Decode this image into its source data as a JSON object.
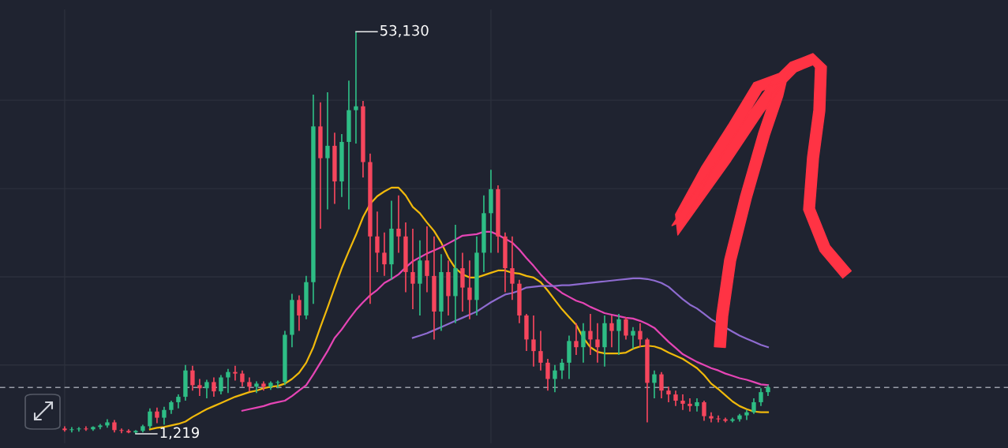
{
  "chart_data": {
    "type": "candlestick",
    "categories": [
      null,
      null,
      null,
      null,
      null,
      null,
      null,
      null,
      null,
      null,
      null,
      null,
      null,
      null,
      null,
      null,
      null,
      null,
      null,
      null,
      null,
      null,
      null,
      null,
      null,
      null,
      null,
      null,
      null,
      null,
      null,
      null,
      null,
      null,
      null,
      null,
      null,
      null,
      null,
      null,
      null,
      null,
      null,
      null,
      null,
      null,
      null,
      null,
      null,
      null,
      null,
      null,
      null,
      null,
      null,
      null,
      null,
      null,
      null,
      null,
      null,
      null,
      null,
      null,
      null,
      null,
      null,
      null,
      null,
      null,
      null,
      null,
      null,
      null,
      null,
      null,
      null,
      null,
      null,
      null,
      null,
      null,
      null,
      null,
      null,
      null,
      null,
      null,
      null,
      null,
      null,
      null,
      null,
      null,
      null,
      null,
      null,
      null,
      null,
      null
    ],
    "ohlc": [
      [
        1900,
        2200,
        1500,
        1700
      ],
      [
        1700,
        2100,
        1400,
        1800
      ],
      [
        1800,
        2100,
        1500,
        1900
      ],
      [
        1900,
        2200,
        1600,
        1800
      ],
      [
        1800,
        2200,
        1600,
        2100
      ],
      [
        2100,
        2500,
        1800,
        2300
      ],
      [
        2300,
        3100,
        2000,
        2700
      ],
      [
        2700,
        3000,
        1400,
        1700
      ],
      [
        1700,
        1900,
        1300,
        1600
      ],
      [
        1600,
        1800,
        1300,
        1400
      ],
      [
        1400,
        1700,
        1219,
        1600
      ],
      [
        1600,
        2400,
        1400,
        2200
      ],
      [
        2200,
        4500,
        1900,
        4100
      ],
      [
        4100,
        4600,
        2600,
        3300
      ],
      [
        3300,
        4700,
        2400,
        4300
      ],
      [
        4300,
        5500,
        3800,
        5300
      ],
      [
        5300,
        6300,
        4500,
        6000
      ],
      [
        6000,
        10100,
        5500,
        9400
      ],
      [
        9400,
        10000,
        6800,
        7500
      ],
      [
        7500,
        8300,
        6100,
        7100
      ],
      [
        7100,
        8200,
        5800,
        7900
      ],
      [
        7900,
        8500,
        6000,
        6700
      ],
      [
        6700,
        8800,
        6300,
        8500
      ],
      [
        8500,
        9600,
        6500,
        9200
      ],
      [
        9200,
        10000,
        8100,
        9000
      ],
      [
        9000,
        9400,
        7300,
        7900
      ],
      [
        7900,
        8500,
        6700,
        7300
      ],
      [
        7300,
        8000,
        6500,
        7700
      ],
      [
        7700,
        8000,
        6800,
        7300
      ],
      [
        7300,
        8000,
        6900,
        7800
      ],
      [
        7800,
        8100,
        7100,
        7900
      ],
      [
        7900,
        14500,
        7500,
        14000
      ],
      [
        14000,
        19300,
        12400,
        18500
      ],
      [
        18500,
        19100,
        14500,
        16500
      ],
      [
        16500,
        21600,
        16000,
        20800
      ],
      [
        20800,
        45000,
        18000,
        40900
      ],
      [
        40900,
        44000,
        27700,
        36800
      ],
      [
        36800,
        45300,
        30200,
        38400
      ],
      [
        38400,
        40100,
        30900,
        33800
      ],
      [
        33800,
        39900,
        31800,
        38900
      ],
      [
        38900,
        46800,
        30200,
        43000
      ],
      [
        43000,
        53130,
        38700,
        43500
      ],
      [
        43500,
        44200,
        34300,
        36300
      ],
      [
        36300,
        37400,
        18000,
        26700
      ],
      [
        26700,
        29900,
        22100,
        24600
      ],
      [
        24600,
        27200,
        21600,
        23100
      ],
      [
        23100,
        31300,
        21100,
        27700
      ],
      [
        27700,
        32000,
        24600,
        26700
      ],
      [
        26700,
        28500,
        19500,
        22100
      ],
      [
        22100,
        27700,
        17300,
        20600
      ],
      [
        20600,
        26200,
        16500,
        23600
      ],
      [
        23600,
        28000,
        19500,
        21600
      ],
      [
        21600,
        26700,
        13400,
        17000
      ],
      [
        17000,
        24400,
        14500,
        22100
      ],
      [
        22100,
        23600,
        16500,
        19000
      ],
      [
        19000,
        28200,
        15500,
        22600
      ],
      [
        22600,
        24600,
        17000,
        20100
      ],
      [
        20100,
        23600,
        16000,
        18500
      ],
      [
        18500,
        26700,
        16500,
        24600
      ],
      [
        24600,
        32000,
        22100,
        29700
      ],
      [
        29700,
        35300,
        24600,
        32800
      ],
      [
        32800,
        33300,
        24600,
        26700
      ],
      [
        26700,
        27200,
        19500,
        22600
      ],
      [
        22600,
        26700,
        18500,
        20600
      ],
      [
        20600,
        21100,
        15500,
        16500
      ],
      [
        16500,
        16700,
        11900,
        13400
      ],
      [
        13400,
        16500,
        9900,
        11900
      ],
      [
        11900,
        14500,
        9400,
        10400
      ],
      [
        10400,
        10900,
        6800,
        8300
      ],
      [
        8300,
        10100,
        6600,
        9400
      ],
      [
        9400,
        10900,
        8300,
        10400
      ],
      [
        10400,
        13900,
        8300,
        13200
      ],
      [
        13200,
        15500,
        11400,
        12400
      ],
      [
        12400,
        15500,
        10400,
        14500
      ],
      [
        14500,
        16700,
        11400,
        13400
      ],
      [
        13400,
        15500,
        10400,
        12400
      ],
      [
        12400,
        16500,
        9900,
        15500
      ],
      [
        15500,
        16500,
        12400,
        14500
      ],
      [
        14500,
        16700,
        11400,
        16000
      ],
      [
        16000,
        16300,
        13400,
        13900
      ],
      [
        13900,
        15000,
        12200,
        14500
      ],
      [
        14500,
        15500,
        12400,
        13400
      ],
      [
        13400,
        13600,
        2700,
        7800
      ],
      [
        7800,
        9400,
        5800,
        8900
      ],
      [
        8900,
        9200,
        5800,
        6800
      ],
      [
        6800,
        7300,
        5300,
        6300
      ],
      [
        6300,
        6800,
        4800,
        5500
      ],
      [
        5500,
        6300,
        4300,
        5100
      ],
      [
        5100,
        5800,
        4100,
        4800
      ],
      [
        4800,
        5800,
        4100,
        5300
      ],
      [
        5300,
        5500,
        2900,
        3500
      ],
      [
        3500,
        4000,
        2700,
        3200
      ],
      [
        3200,
        3600,
        2700,
        3100
      ],
      [
        3100,
        3300,
        2700,
        2900
      ],
      [
        2900,
        3300,
        2700,
        3100
      ],
      [
        3100,
        3800,
        2800,
        3600
      ],
      [
        3600,
        4300,
        3000,
        4000
      ],
      [
        4000,
        5800,
        3800,
        5300
      ],
      [
        5300,
        7100,
        4800,
        6600
      ],
      [
        6600,
        7500,
        6100,
        7200
      ]
    ],
    "colors": [
      "#f6465d",
      "#2ebd85",
      "#2ebd85",
      "#f6465d",
      "#2ebd85",
      "#2ebd85",
      "#2ebd85",
      "#f6465d",
      "#f6465d",
      "#f6465d",
      "#2ebd85",
      "#2ebd85",
      "#2ebd85",
      "#f6465d",
      "#2ebd85",
      "#2ebd85",
      "#2ebd85",
      "#2ebd85",
      "#f6465d",
      "#f6465d",
      "#2ebd85",
      "#f6465d",
      "#2ebd85",
      "#2ebd85",
      "#f6465d",
      "#f6465d",
      "#f6465d",
      "#2ebd85",
      "#f6465d",
      "#2ebd85",
      "#2ebd85",
      "#2ebd85",
      "#2ebd85",
      "#f6465d",
      "#2ebd85",
      "#2ebd85",
      "#f6465d",
      "#2ebd85",
      "#f6465d",
      "#2ebd85",
      "#2ebd85",
      "#2ebd85",
      "#f6465d",
      "#f6465d",
      "#f6465d",
      "#f6465d",
      "#2ebd85",
      "#f6465d",
      "#f6465d",
      "#f6465d",
      "#2ebd85",
      "#f6465d",
      "#f6465d",
      "#2ebd85",
      "#f6465d",
      "#2ebd85",
      "#f6465d",
      "#f6465d",
      "#2ebd85",
      "#2ebd85",
      "#2ebd85",
      "#f6465d",
      "#f6465d",
      "#f6465d",
      "#f6465d",
      "#f6465d",
      "#f6465d",
      "#f6465d",
      "#f6465d",
      "#2ebd85",
      "#2ebd85",
      "#2ebd85",
      "#f6465d",
      "#2ebd85",
      "#f6465d",
      "#f6465d",
      "#2ebd85",
      "#f6465d",
      "#2ebd85",
      "#f6465d",
      "#2ebd85",
      "#f6465d",
      "#f6465d",
      "#2ebd85",
      "#f6465d",
      "#f6465d",
      "#f6465d",
      "#f6465d",
      "#f6465d",
      "#2ebd85",
      "#f6465d",
      "#f6465d",
      "#f6465d",
      "#f6465d",
      "#2ebd85",
      "#2ebd85",
      "#2ebd85",
      "#2ebd85",
      "#2ebd85",
      "#2ebd85"
    ],
    "series": [
      {
        "type": "line",
        "color": "#f0b90b",
        "values": [
          null,
          null,
          null,
          null,
          null,
          null,
          null,
          null,
          null,
          null,
          null,
          null,
          1800,
          2000,
          2100,
          2300,
          2500,
          2800,
          3400,
          3900,
          4400,
          4800,
          5200,
          5600,
          6000,
          6300,
          6600,
          6800,
          7100,
          7300,
          7400,
          7700,
          8300,
          9100,
          10400,
          12400,
          15000,
          17500,
          20100,
          22600,
          24800,
          26900,
          29200,
          30900,
          31900,
          32500,
          33000,
          33000,
          32000,
          30500,
          29700,
          28500,
          27400,
          25900,
          24000,
          22600,
          21800,
          21400,
          21400,
          21700,
          22000,
          22300,
          22300,
          22000,
          21900,
          21600,
          21400,
          20800,
          19700,
          18500,
          17300,
          16300,
          15300,
          13600,
          12400,
          11800,
          11600,
          11600,
          11600,
          11700,
          12200,
          12500,
          12600,
          12500,
          12200,
          11700,
          11300,
          10900,
          10300,
          9700,
          8800,
          7700,
          7000,
          6200,
          5400,
          4800,
          4400,
          4100,
          4000,
          4000
        ]
      },
      {
        "type": "line",
        "color": "#e545b5",
        "values": [
          null,
          null,
          null,
          null,
          null,
          null,
          null,
          null,
          null,
          null,
          null,
          null,
          null,
          null,
          null,
          null,
          null,
          null,
          null,
          null,
          null,
          null,
          null,
          null,
          null,
          4200,
          4400,
          4600,
          4800,
          5100,
          5300,
          5500,
          6100,
          6800,
          7500,
          8900,
          10400,
          11900,
          13600,
          14700,
          16000,
          17200,
          18200,
          19100,
          19800,
          20700,
          21200,
          21800,
          22700,
          23500,
          24000,
          24500,
          24900,
          25300,
          25800,
          26300,
          26800,
          26900,
          27000,
          27300,
          27300,
          26900,
          26400,
          25900,
          25000,
          23900,
          22900,
          21800,
          20800,
          20100,
          19400,
          18900,
          18400,
          18100,
          17600,
          17200,
          16800,
          16600,
          16400,
          16200,
          16100,
          15800,
          15400,
          14900,
          14000,
          13100,
          12300,
          11500,
          11000,
          10500,
          10100,
          9700,
          9400,
          9000,
          8700,
          8400,
          8200,
          7900,
          7600,
          7500
        ]
      },
      {
        "type": "line",
        "color": "#8e6bd0",
        "values": [
          null,
          null,
          null,
          null,
          null,
          null,
          null,
          null,
          null,
          null,
          null,
          null,
          null,
          null,
          null,
          null,
          null,
          null,
          null,
          null,
          null,
          null,
          null,
          null,
          null,
          null,
          null,
          null,
          null,
          null,
          null,
          null,
          null,
          null,
          null,
          null,
          null,
          null,
          null,
          null,
          null,
          null,
          null,
          null,
          null,
          null,
          null,
          null,
          null,
          13600,
          13900,
          14200,
          14600,
          15000,
          15400,
          15800,
          16200,
          16600,
          17000,
          17600,
          18200,
          18700,
          19200,
          19400,
          19700,
          20100,
          20200,
          20300,
          20300,
          20300,
          20400,
          20400,
          20500,
          20600,
          20700,
          20800,
          20900,
          21000,
          21100,
          21200,
          21300,
          21300,
          21200,
          21000,
          20700,
          20200,
          19400,
          18600,
          17900,
          17400,
          16700,
          16000,
          null,
          null,
          14400,
          13900,
          13500,
          13100,
          12700,
          12400
        ]
      }
    ],
    "ylim": [
      0,
      56000
    ],
    "yticks": [
      {
        "value": 10100,
        "label": null
      },
      {
        "value": 21480,
        "label": null
      },
      {
        "value": 32880,
        "label": null
      },
      {
        "value": 44280,
        "label": null
      }
    ],
    "grid": true,
    "ref_lines": [
      {
        "axis": "y",
        "value": 7200,
        "line_style": "dashed",
        "color": "#9a9ea8"
      }
    ],
    "annotations": [
      "53,130",
      "1,219"
    ]
  }
}
